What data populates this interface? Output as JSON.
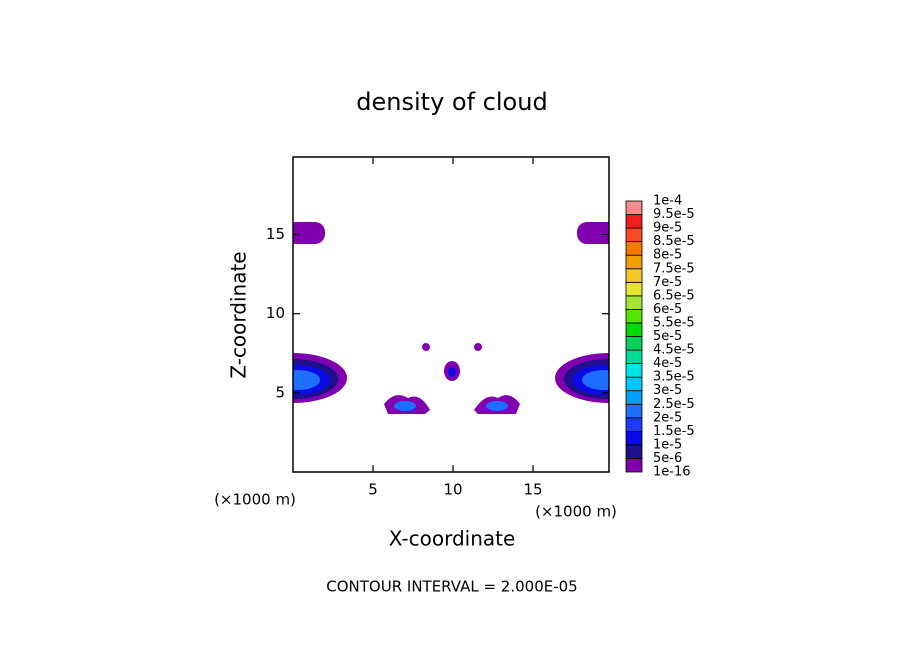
{
  "chart_data": {
    "type": "contour",
    "title": "density of cloud",
    "x_label": "X-coordinate",
    "y_label": "Z-coordinate",
    "x_unit_label": "(×1000 m)",
    "y_unit_label": "(×1000 m)",
    "footer": "CONTOUR INTERVAL = 2.000E-05",
    "xlim": [
      0,
      19.75
    ],
    "ylim": [
      0,
      19.9
    ],
    "xticks": [
      5,
      10,
      15
    ],
    "yticks": [
      5,
      10,
      15
    ],
    "colorbar": {
      "levels": [
        {
          "value": 1e-16,
          "label": "1e-16"
        },
        {
          "value": 5e-06,
          "label": "5e-6"
        },
        {
          "value": 1e-05,
          "label": "1e-5"
        },
        {
          "value": 1.5e-05,
          "label": "1.5e-5"
        },
        {
          "value": 2e-05,
          "label": "2e-5"
        },
        {
          "value": 2.5e-05,
          "label": "2.5e-5"
        },
        {
          "value": 3e-05,
          "label": "3e-5"
        },
        {
          "value": 3.5e-05,
          "label": "3.5e-5"
        },
        {
          "value": 4e-05,
          "label": "4e-5"
        },
        {
          "value": 4.5e-05,
          "label": "4.5e-5"
        },
        {
          "value": 5e-05,
          "label": "5e-5"
        },
        {
          "value": 5.5e-05,
          "label": "5.5e-5"
        },
        {
          "value": 6e-05,
          "label": "6e-5"
        },
        {
          "value": 6.5e-05,
          "label": "6.5e-5"
        },
        {
          "value": 7e-05,
          "label": "7e-5"
        },
        {
          "value": 7.5e-05,
          "label": "7.5e-5"
        },
        {
          "value": 8e-05,
          "label": "8e-5"
        },
        {
          "value": 8.5e-05,
          "label": "8.5e-5"
        },
        {
          "value": 9e-05,
          "label": "9e-5"
        },
        {
          "value": 9.5e-05,
          "label": "9.5e-5"
        },
        {
          "value": 0.0001,
          "label": "1e-4"
        }
      ],
      "colors": [
        "#8000b0",
        "#1e0f8c",
        "#0a0ae6",
        "#1e3cff",
        "#1e6eff",
        "#00a0ff",
        "#00c8ff",
        "#00e6e6",
        "#00dc96",
        "#00d25a",
        "#00dc00",
        "#50e600",
        "#a0e632",
        "#e6e632",
        "#f0c828",
        "#f0a000",
        "#fa7800",
        "#fa4b28",
        "#f01e1e",
        "#f08c8c"
      ]
    }
  }
}
